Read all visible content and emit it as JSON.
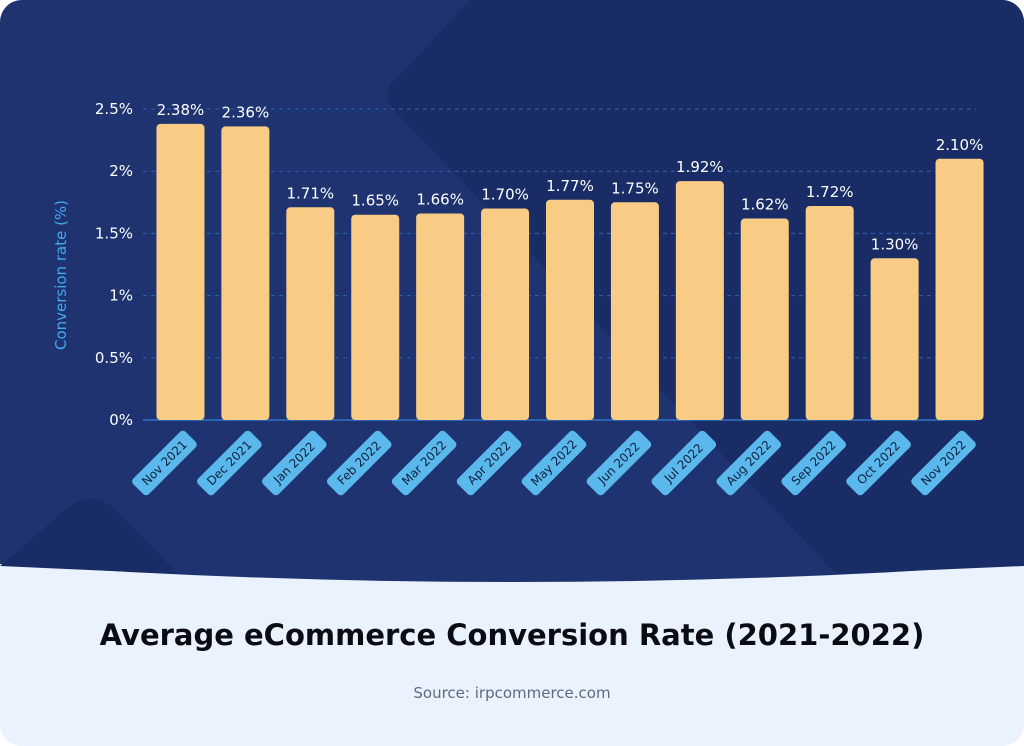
{
  "footer": {
    "title": "Average eCommerce Conversion Rate (2021-2022)",
    "source": "Source: irpcommerce.com"
  },
  "colors": {
    "background": "#1e3370",
    "bar": "#f8cc84",
    "category_pill": "#5ab8ec",
    "axis_title": "#42a8f0",
    "footer_background": "#eaf2fd"
  },
  "chart_data": {
    "type": "bar",
    "title": "Average eCommerce Conversion Rate (2021-2022)",
    "xlabel": "",
    "ylabel": "Conversion rate (%)",
    "ylim": [
      0,
      2.5
    ],
    "yticks": [
      "0%",
      "0.5%",
      "1%",
      "1.5%",
      "2%",
      "2.5%"
    ],
    "grid": "horizontal dashed",
    "categories": [
      "Nov 2021",
      "Dec 2021",
      "Jan 2022",
      "Feb 2022",
      "Mar 2022",
      "Apr 2022",
      "May 2022",
      "Jun 2022",
      "Jul 2022",
      "Aug 2022",
      "Sep 2022",
      "Oct 2022",
      "Nov 2022"
    ],
    "values": [
      2.38,
      2.36,
      1.71,
      1.65,
      1.66,
      1.7,
      1.77,
      1.75,
      1.92,
      1.62,
      1.72,
      1.3,
      2.1
    ],
    "value_labels": [
      "2.38%",
      "2.36%",
      "1.71%",
      "1.65%",
      "1.66%",
      "1.70%",
      "1.77%",
      "1.75%",
      "1.92%",
      "1.62%",
      "1.72%",
      "1.30%",
      "2.10%"
    ]
  }
}
